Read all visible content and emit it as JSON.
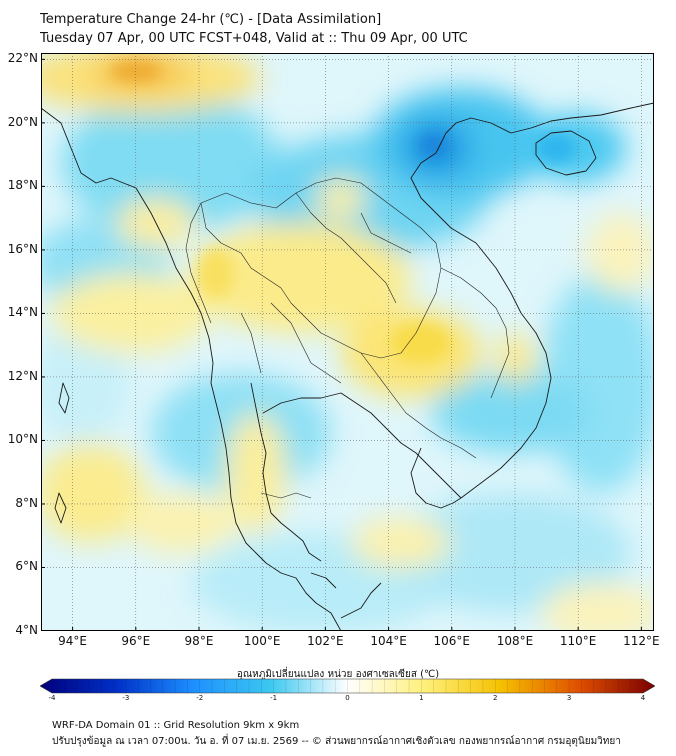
{
  "title": {
    "line1": "Temperature Change 24-hr (℃) - [Data Assimilation]",
    "line2": "Tuesday 07 Apr, 00 UTC FCST+048, Valid at :: Thu 09 Apr, 00 UTC"
  },
  "map": {
    "lat_labels": [
      "22°N",
      "20°N",
      "18°N",
      "16°N",
      "14°N",
      "12°N",
      "10°N",
      "8°N",
      "6°N",
      "4°N"
    ],
    "lon_labels": [
      "94°E",
      "96°E",
      "98°E",
      "100°E",
      "102°E",
      "104°E",
      "106°E",
      "108°E",
      "110°E",
      "112°E"
    ],
    "lat_range": [
      4,
      22.2
    ],
    "lon_range": [
      93,
      112.4
    ]
  },
  "colorbar": {
    "title": "อุณหภูมิเปลี่ยนแปลง หน่วย องศาเซลเซียส (℃)",
    "ticks": [
      "-4",
      "-3",
      "-2",
      "-1",
      "0",
      "1",
      "2",
      "3",
      "4"
    ],
    "range": [
      -4,
      4
    ],
    "colors": [
      "#00007a",
      "#0030c8",
      "#1e90ff",
      "#3cc8f0",
      "#ffffff",
      "#fff07a",
      "#f5c000",
      "#e05000",
      "#7a0000"
    ]
  },
  "footer": {
    "line1": "WRF-DA Domain 01 :: Grid Resolution 9km x 9km",
    "line2": "ปรับปรุงข้อมูล ณ เวลา 07:00น. วัน อ. ที่ 07 เม.ย. 2569 -- © ส่วนพยากรณ์อากาศเชิงตัวเลข กองพยากรณ์อากาศ กรมอุตุนิยมวิทยา"
  }
}
